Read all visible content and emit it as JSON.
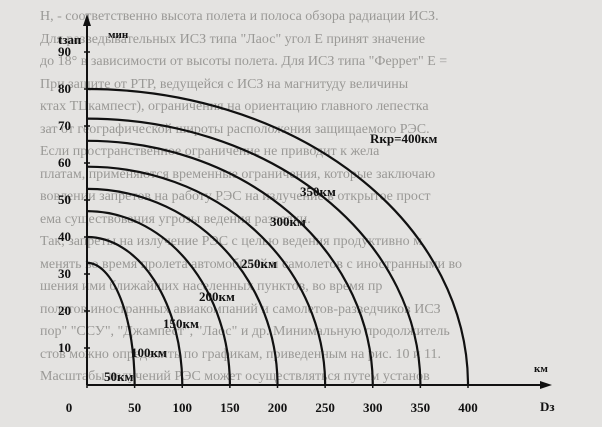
{
  "background_text": [
    "Н, - соответственно высота полета и полоса обзора радиации ИСЗ.",
    "Для разведывательных ИСЗ типа \"Лаос\" угол Е принят значение",
    "до 18° в зависимости от высоты полета. Для ИСЗ типа \"Феррет\" Е =",
    "При защите от РТР, ведущейся с ИСЗ на магнитуду величины",
    "ктах ТЦкампест), ограничения на ориентацию главного лепестка",
    "зат от географической широты расположения защищаемого РЭС.",
    "Если пространственное ограничение не приводит к жела",
    "платам, применяются временные ограничения, которые заключаю",
    "вовлении запретов на работу РЭС на излучение в открытое прост",
    "ема существования угрозы ведения разведки.",
    "Так, запреты на излучение РЭС с целью ведения продуктивно м",
    "менять во время пролета автомобилей и самолетов с иностранными во",
    "шения ими ближайших населенных пунктов, во время пр",
    "полетов иностранных авиакомпаний и самолетов-разведчиков ИСЗ",
    "пор\" \"ССУ\", \"Джампест\", \"Лаос\" и др. Минимальную продолжитель",
    "стов можно определить по графикам, приведенным на рис. 10 и 11.",
    "Масштабы излучений РЭС может осуществляться путем установ"
  ],
  "chart_data": {
    "type": "line",
    "title": "",
    "ylabel": "tзап",
    "yunit": "мин",
    "xlabel": "Dз",
    "xunit": "км",
    "xlim": [
      0,
      400
    ],
    "ylim": [
      0,
      90
    ],
    "xticks": [
      0,
      50,
      100,
      150,
      200,
      250,
      300,
      350,
      400
    ],
    "yticks": [
      10,
      20,
      30,
      40,
      50,
      60,
      70,
      80,
      90
    ],
    "x_tick_labels": [
      "0",
      "50",
      "100",
      "150",
      "200",
      "250",
      "300",
      "350",
      "400"
    ],
    "y_tick_labels": [
      "10",
      "20",
      "30",
      "40",
      "50",
      "60",
      "70",
      "80",
      "90"
    ],
    "curves": [
      {
        "label": "50км",
        "r": 50,
        "y0": 33
      },
      {
        "label": "100км",
        "r": 100,
        "y0": 40
      },
      {
        "label": "150км",
        "r": 150,
        "y0": 47
      },
      {
        "label": "200км",
        "r": 200,
        "y0": 53
      },
      {
        "label": "250км",
        "r": 250,
        "y0": 59
      },
      {
        "label": "300км",
        "r": 300,
        "y0": 66
      },
      {
        "label": "350км",
        "r": 350,
        "y0": 72
      },
      {
        "label": "Rкр=400км",
        "r": 400,
        "y0": 80
      }
    ]
  },
  "colors": {
    "ink": "#111111",
    "paper": "#e4e3e1",
    "bg_text": "#9a9996"
  }
}
